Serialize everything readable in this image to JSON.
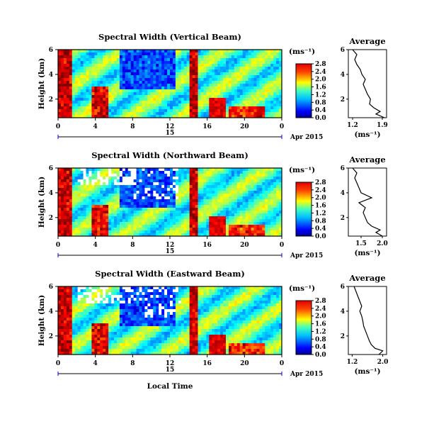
{
  "figure": {
    "date_label": "Apr 2015",
    "xaxis_title": "Local Time",
    "day_label": "15"
  },
  "chart_data": [
    {
      "type": "heatmap",
      "title": "Spectral Width (Vertical Beam)",
      "ylabel": "Height (km)",
      "x_ticks": [
        "0",
        "4",
        "8",
        "12",
        "16",
        "20",
        "0"
      ],
      "y_ticks": [
        "2",
        "4",
        "6"
      ],
      "xlim_hours": [
        0,
        24
      ],
      "ylim_km": [
        0.5,
        6
      ],
      "colorbar": {
        "unit": "(ms⁻¹)",
        "ticks": [
          "0.0",
          "0.4",
          "0.8",
          "1.2",
          "1.6",
          "2.0",
          "2.4",
          "2.8"
        ]
      },
      "profile": {
        "title": "Average",
        "xlabel": "(ms⁻¹)",
        "x_ticks": [
          "1.2",
          "1.9"
        ],
        "xlim": [
          1.1,
          2.0
        ],
        "y_ticks": [
          "2",
          "4",
          "6"
        ],
        "height_km": [
          0.5,
          0.8,
          1.0,
          1.3,
          1.6,
          2.0,
          2.4,
          2.8,
          3.2,
          3.6,
          4.0,
          4.4,
          4.8,
          5.2,
          5.6,
          6.0
        ],
        "values": [
          1.95,
          1.75,
          1.85,
          1.7,
          1.6,
          1.62,
          1.55,
          1.5,
          1.45,
          1.5,
          1.42,
          1.38,
          1.3,
          1.25,
          1.3,
          1.2
        ]
      }
    },
    {
      "type": "heatmap",
      "title": "Spectral Width (Northward Beam)",
      "ylabel": "Height (km)",
      "x_ticks": [
        "0",
        "4",
        "8",
        "12",
        "16",
        "20",
        "0"
      ],
      "y_ticks": [
        "2",
        "4",
        "6"
      ],
      "xlim_hours": [
        0,
        24
      ],
      "ylim_km": [
        0.5,
        6
      ],
      "colorbar": {
        "unit": "(ms⁻¹)",
        "ticks": [
          "0.0",
          "0.4",
          "0.8",
          "1.2",
          "1.6",
          "2.0",
          "2.4",
          "2.8"
        ]
      },
      "profile": {
        "title": "Average",
        "xlabel": "(ms⁻¹)",
        "x_ticks": [
          "1.5",
          "2.0"
        ],
        "xlim": [
          1.2,
          2.1
        ],
        "y_ticks": [
          "2",
          "4",
          "6"
        ],
        "height_km": [
          0.5,
          0.8,
          1.0,
          1.3,
          1.6,
          2.0,
          2.4,
          2.8,
          3.2,
          3.6,
          4.0,
          4.4,
          4.8,
          5.2,
          5.6,
          6.0
        ],
        "values": [
          2.0,
          1.85,
          1.95,
          1.75,
          1.65,
          1.6,
          1.55,
          1.6,
          1.45,
          1.75,
          1.5,
          1.45,
          1.4,
          1.35,
          1.4,
          1.3
        ]
      }
    },
    {
      "type": "heatmap",
      "title": "Spectral Width (Eastward Beam)",
      "ylabel": "Height (km)",
      "x_ticks": [
        "0",
        "4",
        "8",
        "12",
        "16",
        "20",
        "0"
      ],
      "y_ticks": [
        "2",
        "4",
        "6"
      ],
      "xlim_hours": [
        0,
        24
      ],
      "ylim_km": [
        0.5,
        6
      ],
      "colorbar": {
        "unit": "(ms⁻¹)",
        "ticks": [
          "0.0",
          "0.4",
          "0.8",
          "1.2",
          "1.6",
          "2.0",
          "2.4",
          "2.8"
        ]
      },
      "profile": {
        "title": "Average",
        "xlabel": "(ms⁻¹)",
        "x_ticks": [
          "1.2",
          "2.0"
        ],
        "xlim": [
          1.1,
          2.1
        ],
        "y_ticks": [
          "2",
          "4",
          "6"
        ],
        "height_km": [
          0.5,
          0.8,
          1.0,
          1.3,
          1.6,
          2.0,
          2.4,
          2.8,
          3.2,
          3.6,
          4.0,
          4.4,
          4.8,
          5.2,
          5.6,
          6.0
        ],
        "values": [
          1.9,
          2.0,
          1.8,
          1.7,
          1.65,
          1.6,
          1.55,
          1.5,
          1.48,
          1.45,
          1.4,
          1.45,
          1.4,
          1.35,
          1.3,
          1.25
        ]
      }
    }
  ]
}
